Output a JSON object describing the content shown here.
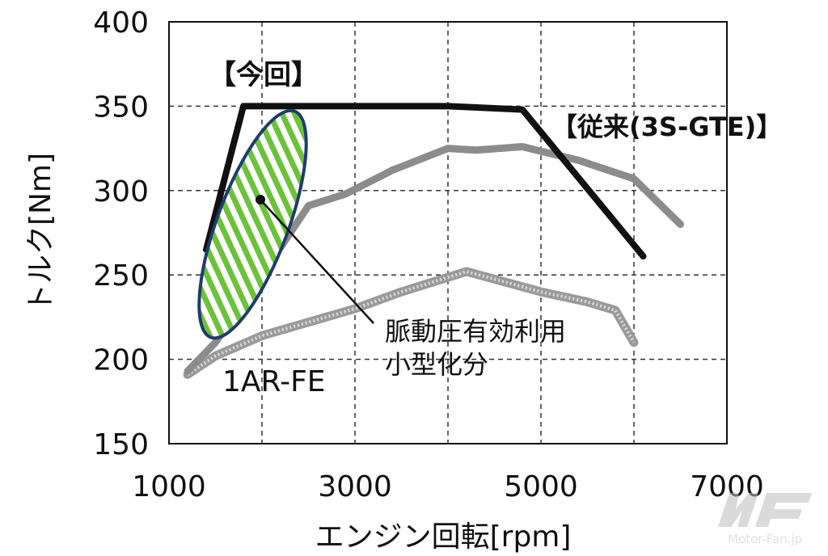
{
  "chart_data": {
    "type": "line",
    "title": "",
    "xlabel": "エンジン回転[rpm]",
    "ylabel": "トルク[Nm]",
    "xlim": [
      1000,
      7000
    ],
    "ylim": [
      150,
      400
    ],
    "x_ticks": [
      1000,
      3000,
      5000,
      7000
    ],
    "y_ticks": [
      150,
      200,
      250,
      300,
      350,
      400
    ],
    "x_tick_labels": [
      "1000",
      "3000",
      "5000",
      "7000"
    ],
    "y_tick_labels": [
      "150",
      "200",
      "250",
      "300",
      "350",
      "400"
    ],
    "grid": true,
    "series": [
      {
        "name": "【今回】",
        "color": "#111111",
        "style": "solid-thick",
        "points": [
          [
            1400,
            265
          ],
          [
            1800,
            350
          ],
          [
            4000,
            350
          ],
          [
            4800,
            348
          ],
          [
            6100,
            261
          ]
        ]
      },
      {
        "name": "【従来(3S-GTE)】",
        "color": "#8c8c8c",
        "style": "solid",
        "points": [
          [
            1200,
            193
          ],
          [
            1500,
            210
          ],
          [
            2000,
            250
          ],
          [
            2500,
            291
          ],
          [
            2900,
            298
          ],
          [
            3400,
            312
          ],
          [
            4000,
            325
          ],
          [
            4300,
            324
          ],
          [
            4800,
            326
          ],
          [
            5400,
            318
          ],
          [
            6000,
            307
          ],
          [
            6500,
            280
          ]
        ]
      },
      {
        "name": "1AR-FE",
        "color": "#a6a6a6",
        "style": "dotted-band",
        "points": [
          [
            1200,
            191
          ],
          [
            1500,
            202
          ],
          [
            2000,
            214
          ],
          [
            2500,
            222
          ],
          [
            3000,
            230
          ],
          [
            3500,
            240
          ],
          [
            4200,
            252
          ],
          [
            5000,
            240
          ],
          [
            5500,
            234
          ],
          [
            5800,
            229
          ],
          [
            6000,
            210
          ]
        ]
      }
    ],
    "annotations": {
      "label_new": "【今回】",
      "label_old": "【従来(3S-GTE)】",
      "label_1ar": "1AR-FE",
      "pulse_line1": "脈動圧有効利用",
      "pulse_line2": "小型化分"
    },
    "highlight": {
      "shape": "ellipse",
      "fill": "green-hatched",
      "stroke": "#1f3d6b",
      "span_rpm": [
        1450,
        2350
      ],
      "span_torque": [
        213,
        347
      ]
    }
  },
  "watermark": {
    "logo": "MF",
    "text": "Motor-Fan.jp"
  },
  "colors": {
    "hatch_green": "#6cc23a",
    "ellipse_stroke": "#1f3d6b"
  }
}
